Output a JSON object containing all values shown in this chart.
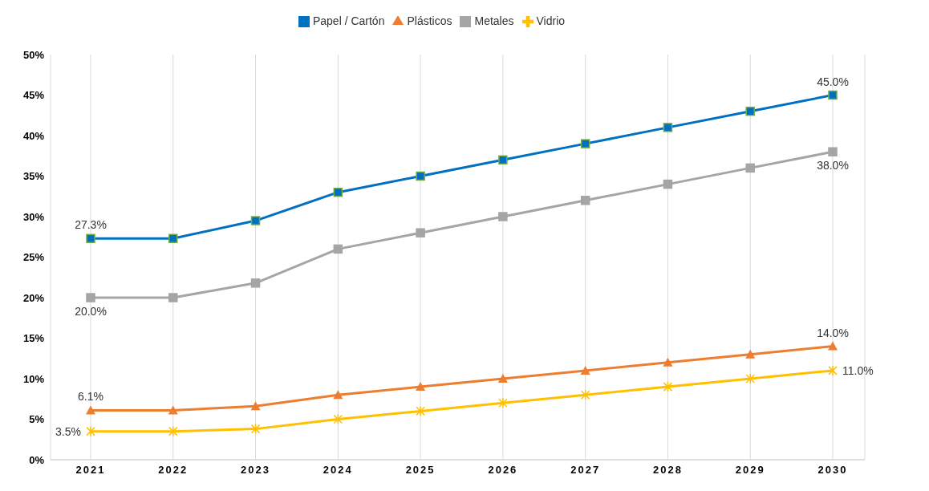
{
  "chart_data": {
    "type": "line",
    "categories": [
      "2021",
      "2022",
      "2023",
      "2024",
      "2025",
      "2026",
      "2027",
      "2028",
      "2029",
      "2030"
    ],
    "series": [
      {
        "name": "Papel / Cartón",
        "color": "#0070c0",
        "marker": "square",
        "values": [
          27.3,
          27.3,
          29.5,
          33,
          35,
          37,
          39,
          41,
          43,
          45
        ],
        "value_labels": [
          "27.3%",
          null,
          null,
          null,
          null,
          null,
          null,
          null,
          null,
          "45.0%"
        ]
      },
      {
        "name": "Plásticos",
        "color": "#ed7d31",
        "marker": "triangle",
        "values": [
          6.1,
          6.1,
          6.6,
          8,
          9,
          10,
          11,
          12,
          13,
          14
        ],
        "value_labels": [
          "6.1%",
          null,
          null,
          null,
          null,
          null,
          null,
          null,
          null,
          "14.0%"
        ]
      },
      {
        "name": "Metales",
        "color": "#a5a5a5",
        "marker": "square",
        "values": [
          20,
          20,
          21.8,
          26,
          28,
          30,
          32,
          34,
          36,
          38
        ],
        "value_labels": [
          "20.0%",
          null,
          null,
          null,
          null,
          null,
          null,
          null,
          null,
          "38.0%"
        ]
      },
      {
        "name": "Vidrio",
        "color": "#ffc000",
        "marker": "cross",
        "values": [
          3.5,
          3.5,
          3.8,
          5,
          6,
          7,
          8,
          9,
          10,
          11
        ],
        "value_labels": [
          "3.5%",
          null,
          null,
          null,
          null,
          null,
          null,
          null,
          null,
          "11.0%"
        ]
      }
    ],
    "ylim": [
      0,
      50
    ],
    "yticks": [
      {
        "value": 0,
        "label": "0%"
      },
      {
        "value": 5,
        "label": "5%"
      },
      {
        "value": 10,
        "label": "10%"
      },
      {
        "value": 15,
        "label": "15%"
      },
      {
        "value": 20,
        "label": "20%"
      },
      {
        "value": 25,
        "label": "25%"
      },
      {
        "value": 30,
        "label": "30%"
      },
      {
        "value": 35,
        "label": "35%"
      },
      {
        "value": 40,
        "label": "40%"
      },
      {
        "value": 45,
        "label": "45%"
      },
      {
        "value": 50,
        "label": "50%"
      }
    ],
    "grid": "x",
    "legend": "top",
    "line_style": "solid"
  }
}
